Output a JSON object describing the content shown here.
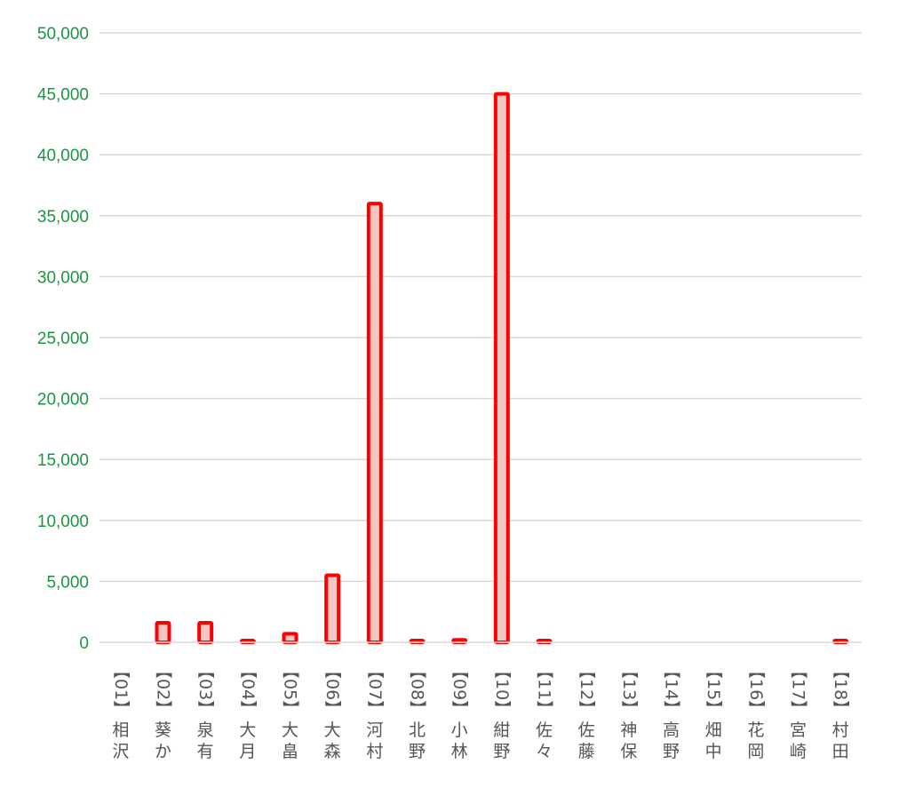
{
  "chart_data": {
    "type": "bar",
    "title": "",
    "xlabel": "",
    "ylabel": "",
    "ylim": [
      0,
      50000
    ],
    "yticks": [
      0,
      5000,
      10000,
      15000,
      20000,
      25000,
      30000,
      35000,
      40000,
      45000,
      50000
    ],
    "ytick_labels": [
      "0",
      "5,000",
      "10,000",
      "15,000",
      "20,000",
      "25,000",
      "30,000",
      "35,000",
      "40,000",
      "45,000",
      "50,000"
    ],
    "grid": true,
    "legend": "none",
    "categories": [
      {
        "code": "【01】",
        "name": "相沢"
      },
      {
        "code": "【02】",
        "name": "葵か"
      },
      {
        "code": "【03】",
        "name": "泉有"
      },
      {
        "code": "【04】",
        "name": "大月"
      },
      {
        "code": "【05】",
        "name": "大畠"
      },
      {
        "code": "【06】",
        "name": "大森"
      },
      {
        "code": "【07】",
        "name": "河村"
      },
      {
        "code": "【08】",
        "name": "北野"
      },
      {
        "code": "【09】",
        "name": "小林"
      },
      {
        "code": "【10】",
        "name": "紺野"
      },
      {
        "code": "【11】",
        "name": "佐々"
      },
      {
        "code": "【12】",
        "name": "佐藤"
      },
      {
        "code": "【13】",
        "name": "神保"
      },
      {
        "code": "【14】",
        "name": "高野"
      },
      {
        "code": "【15】",
        "name": "畑中"
      },
      {
        "code": "【16】",
        "name": "花岡"
      },
      {
        "code": "【17】",
        "name": "宮崎"
      },
      {
        "code": "【18】",
        "name": "村田"
      }
    ],
    "values": [
      0,
      1600,
      1600,
      100,
      700,
      5500,
      36000,
      100,
      200,
      45000,
      100,
      0,
      0,
      0,
      0,
      0,
      0,
      100
    ],
    "colors": {
      "bar_fill": "#f4c6c6",
      "bar_stroke": "#ff0000",
      "axis_text": "#1a9641",
      "category_text": "#555555",
      "grid": "#d9d9d9"
    }
  }
}
